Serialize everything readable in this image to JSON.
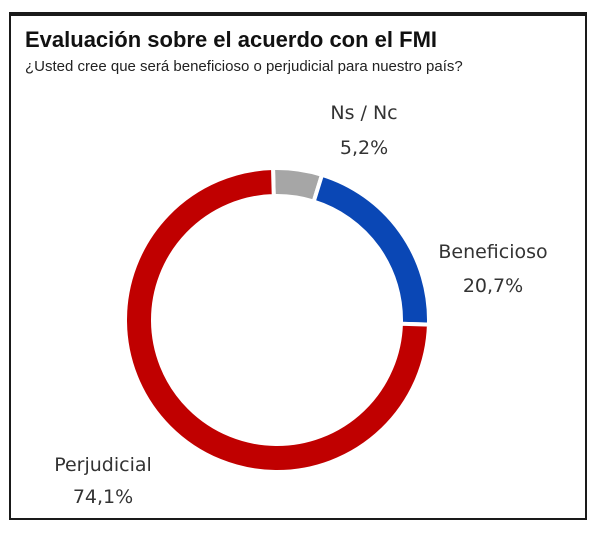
{
  "header": {
    "title": "Evaluación sobre el acuerdo con el FMI",
    "subtitle": "¿Usted cree que será beneficioso o perjudicial para nuestro país?"
  },
  "chart_data": {
    "type": "pie",
    "variant": "donut",
    "start": "top, clockwise",
    "slices": [
      {
        "name": "Ns / Nc",
        "value": 5.2,
        "label": "5,2%",
        "color": "#A6A6A6"
      },
      {
        "name": "Beneficioso",
        "value": 20.7,
        "label": "20,7%",
        "color": "#0A47B5"
      },
      {
        "name": "Perjudicial",
        "value": 74.1,
        "label": "74,1%",
        "color": "#C00000"
      }
    ]
  }
}
